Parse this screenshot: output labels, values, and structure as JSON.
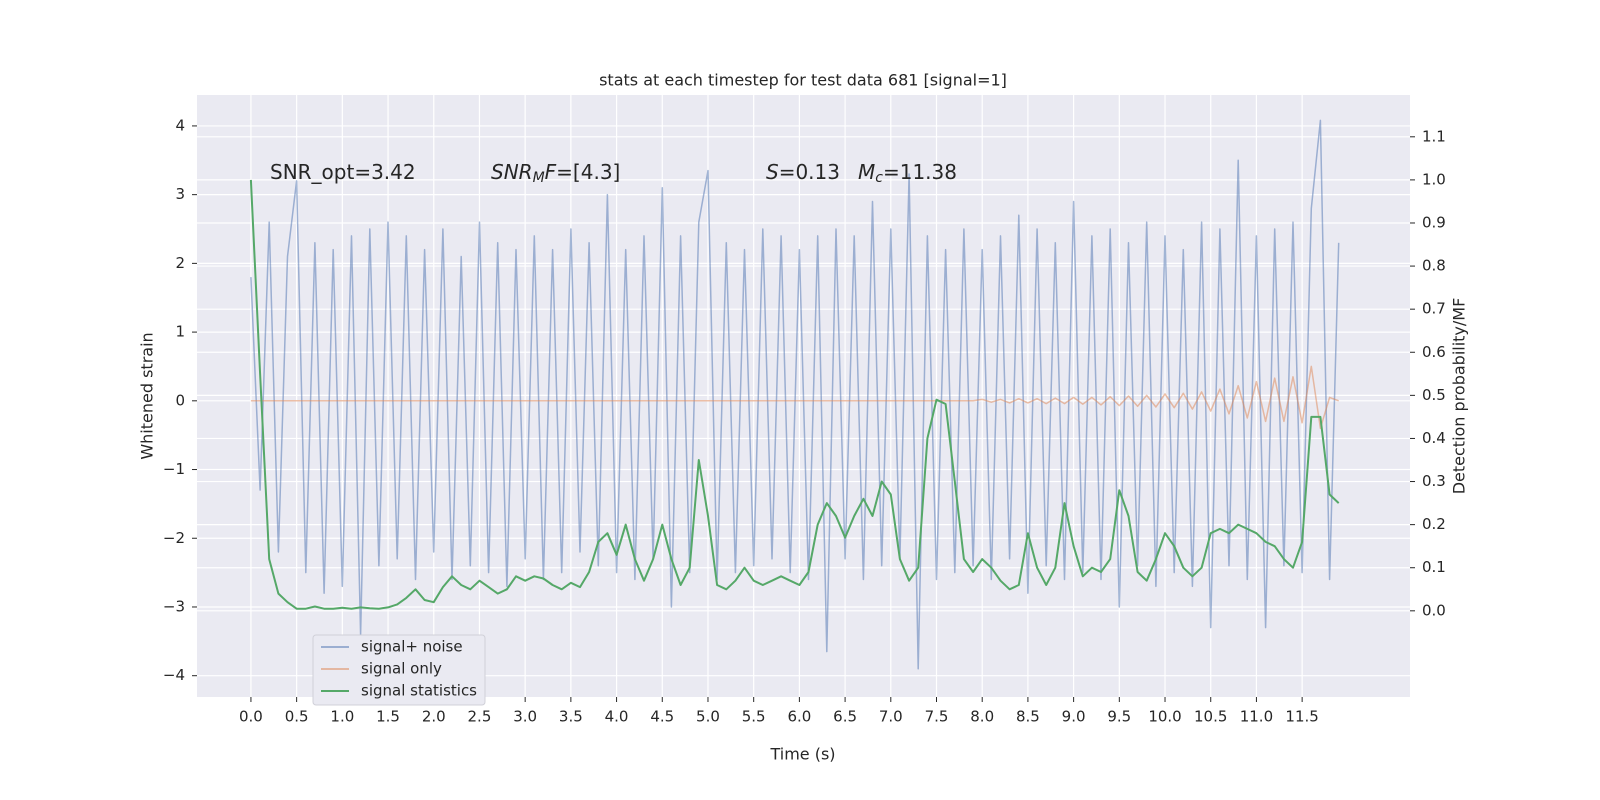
{
  "chart_data": {
    "type": "line",
    "title": "stats at each timestep for test data 681 [signal=1]",
    "xlabel": "Time (s)",
    "ylabel": "Whitened strain",
    "y2label": "Detection probability/MF",
    "annotations": [
      [
        {
          "text": "SNR_opt=3.42"
        }
      ],
      [
        {
          "text": "SNR",
          "italic": true
        },
        {
          "text": "M",
          "italic": true,
          "sub": true
        },
        {
          "text": "F",
          "italic": true
        },
        {
          "text": "=[4.3]"
        }
      ],
      [
        {
          "text": "S",
          "italic": true
        },
        {
          "text": "=0.13"
        }
      ],
      [
        {
          "text": "M",
          "italic": true
        },
        {
          "text": "c",
          "italic": true,
          "sub": true
        },
        {
          "text": "=11.38"
        }
      ]
    ],
    "x": [
      0,
      0.1,
      0.2,
      0.3,
      0.4,
      0.5,
      0.6,
      0.7,
      0.8,
      0.9,
      1,
      1.1,
      1.2,
      1.3,
      1.4,
      1.5,
      1.6,
      1.7,
      1.8,
      1.9,
      2,
      2.1,
      2.2,
      2.3,
      2.4,
      2.5,
      2.6,
      2.7,
      2.8,
      2.9,
      3,
      3.1,
      3.2,
      3.3,
      3.4,
      3.5,
      3.6,
      3.7,
      3.8,
      3.9,
      4,
      4.1,
      4.2,
      4.3,
      4.4,
      4.5,
      4.6,
      4.7,
      4.8,
      4.9,
      5,
      5.1,
      5.2,
      5.3,
      5.4,
      5.5,
      5.6,
      5.7,
      5.8,
      5.9,
      6,
      6.1,
      6.2,
      6.3,
      6.4,
      6.5,
      6.6,
      6.7,
      6.8,
      6.9,
      7,
      7.1,
      7.2,
      7.3,
      7.4,
      7.5,
      7.6,
      7.7,
      7.8,
      7.9,
      8,
      8.1,
      8.2,
      8.3,
      8.4,
      8.5,
      8.6,
      8.7,
      8.8,
      8.9,
      9,
      9.1,
      9.2,
      9.3,
      9.4,
      9.5,
      9.6,
      9.7,
      9.8,
      9.9,
      10,
      10.1,
      10.2,
      10.3,
      10.4,
      10.5,
      10.6,
      10.7,
      10.8,
      10.9,
      11,
      11.1,
      11.2,
      11.3,
      11.4,
      11.5,
      11.6,
      11.7,
      11.8,
      11.9
    ],
    "series": [
      {
        "name": "signal+ noise",
        "color": "#4c72b0",
        "opacity": 0.5,
        "values": [
          1.8,
          -1.3,
          2.6,
          -2.2,
          2.1,
          3.2,
          -2.5,
          2.3,
          -2.8,
          2.2,
          -2.7,
          2.4,
          -3.4,
          2.5,
          -2.4,
          2.6,
          -2.3,
          2.4,
          -2.6,
          2.2,
          -2.2,
          2.5,
          -2.6,
          2.1,
          -2.4,
          2.6,
          -2.5,
          2.3,
          -2.7,
          2.2,
          -2.3,
          2.4,
          -2.6,
          2.2,
          -2.5,
          2.5,
          -2.2,
          2.3,
          -2.4,
          3.0,
          -2.5,
          2.2,
          -2.6,
          2.4,
          -2.3,
          3.1,
          -3.0,
          2.4,
          -2.5,
          2.6,
          3.35,
          -2.6,
          2.3,
          -2.5,
          2.2,
          -2.4,
          2.5,
          -2.3,
          2.4,
          -2.5,
          2.2,
          -2.6,
          2.4,
          -3.65,
          2.5,
          -2.3,
          2.4,
          -2.6,
          2.9,
          -2.4,
          2.5,
          -2.3,
          3.3,
          -3.9,
          2.4,
          -2.6,
          2.2,
          -2.5,
          2.5,
          -2.4,
          2.2,
          -2.6,
          2.4,
          -2.3,
          2.7,
          -2.8,
          2.5,
          -2.4,
          2.3,
          -2.6,
          2.9,
          -2.5,
          2.4,
          -2.6,
          2.5,
          -3.0,
          2.3,
          -2.4,
          2.6,
          -2.7,
          2.4,
          -2.5,
          2.2,
          -2.7,
          2.6,
          -3.3,
          2.5,
          -2.4,
          3.5,
          -2.6,
          2.4,
          -3.3,
          2.5,
          -2.4,
          2.6,
          -2.5,
          2.8,
          4.08,
          -2.6,
          2.3
        ]
      },
      {
        "name": "signal only",
        "color": "#dd8452",
        "opacity": 0.5,
        "values": [
          0,
          0,
          0,
          0,
          0,
          0,
          0,
          0,
          0,
          0,
          0,
          0,
          0,
          0,
          0,
          0,
          0,
          0,
          0,
          0,
          0,
          0,
          0,
          0,
          0,
          0,
          0,
          0,
          0,
          0,
          0,
          0,
          0,
          0,
          0,
          0,
          0,
          0,
          0,
          0,
          0,
          0,
          0,
          0,
          0,
          0,
          0,
          0,
          0,
          0,
          0,
          0,
          0,
          0,
          0,
          0,
          0,
          0,
          0,
          0,
          0,
          0,
          0,
          0,
          0,
          0,
          0,
          0,
          0,
          0,
          0,
          0,
          0,
          0,
          0,
          0,
          0,
          0,
          0,
          0,
          0.02,
          -0.02,
          0.02,
          -0.03,
          0.03,
          -0.03,
          0.03,
          -0.04,
          0.04,
          -0.04,
          0.05,
          -0.05,
          0.05,
          -0.06,
          0.06,
          -0.07,
          0.07,
          -0.08,
          0.08,
          -0.09,
          0.1,
          -0.1,
          0.11,
          -0.12,
          0.13,
          -0.15,
          0.17,
          -0.19,
          0.22,
          -0.25,
          0.28,
          -0.3,
          0.33,
          -0.3,
          0.35,
          -0.32,
          0.5,
          -0.4,
          0.05,
          0
        ]
      },
      {
        "name": "signal statistics",
        "color": "#55a868",
        "opacity": 1,
        "axis": "y2",
        "values": [
          1.0,
          0.55,
          0.12,
          0.04,
          0.02,
          0.005,
          0.005,
          0.01,
          0.005,
          0.005,
          0.007,
          0.005,
          0.008,
          0.006,
          0.005,
          0.008,
          0.015,
          0.03,
          0.05,
          0.025,
          0.02,
          0.055,
          0.08,
          0.06,
          0.05,
          0.07,
          0.055,
          0.04,
          0.05,
          0.08,
          0.07,
          0.08,
          0.075,
          0.06,
          0.05,
          0.065,
          0.055,
          0.09,
          0.16,
          0.18,
          0.13,
          0.2,
          0.12,
          0.07,
          0.12,
          0.2,
          0.12,
          0.06,
          0.1,
          0.35,
          0.22,
          0.06,
          0.05,
          0.07,
          0.1,
          0.07,
          0.06,
          0.07,
          0.08,
          0.07,
          0.06,
          0.09,
          0.2,
          0.25,
          0.22,
          0.17,
          0.22,
          0.26,
          0.22,
          0.3,
          0.27,
          0.12,
          0.07,
          0.1,
          0.4,
          0.49,
          0.48,
          0.3,
          0.12,
          0.09,
          0.12,
          0.1,
          0.07,
          0.05,
          0.06,
          0.18,
          0.1,
          0.06,
          0.1,
          0.25,
          0.15,
          0.08,
          0.1,
          0.09,
          0.12,
          0.28,
          0.22,
          0.09,
          0.07,
          0.12,
          0.18,
          0.15,
          0.1,
          0.08,
          0.1,
          0.18,
          0.19,
          0.18,
          0.2,
          0.19,
          0.18,
          0.16,
          0.15,
          0.12,
          0.1,
          0.16,
          0.45,
          0.45,
          0.27,
          0.25
        ]
      }
    ],
    "xlim": [
      -0.59,
      12.68
    ],
    "xticks": [
      {
        "value": 0,
        "label": "0.0"
      },
      0.5,
      {
        "value": 1,
        "label": "1.0"
      },
      1.5,
      {
        "value": 2,
        "label": "2.0"
      },
      2.5,
      {
        "value": 3,
        "label": "3.0"
      },
      3.5,
      {
        "value": 4,
        "label": "4.0"
      },
      4.5,
      {
        "value": 5,
        "label": "5.0"
      },
      5.5,
      {
        "value": 6,
        "label": "6.0"
      },
      6.5,
      {
        "value": 7,
        "label": "7.0"
      },
      7.5,
      {
        "value": 8,
        "label": "8.0"
      },
      8.5,
      {
        "value": 9,
        "label": "9.0"
      },
      9.5,
      {
        "value": 10,
        "label": "10.0"
      },
      10.5,
      {
        "value": 11,
        "label": "11.0"
      },
      11.5
    ],
    "ylim": [
      -4.31,
      4.45
    ],
    "yticks": [
      {
        "value": -4,
        "label": "−4"
      },
      {
        "value": -3,
        "label": "−3"
      },
      {
        "value": -2,
        "label": "−2"
      },
      {
        "value": -1,
        "label": "−1"
      },
      0,
      1,
      2,
      3,
      4
    ],
    "y2lim": [
      -0.2,
      1.197
    ],
    "y2ticks": [
      {
        "value": 0,
        "label": "0.0"
      },
      0.1,
      0.2,
      0.3,
      0.4,
      0.5,
      0.6,
      0.7,
      0.8,
      0.9,
      {
        "value": 1,
        "label": "1.0"
      },
      1.1
    ],
    "grid": true,
    "legend": "lower left"
  }
}
